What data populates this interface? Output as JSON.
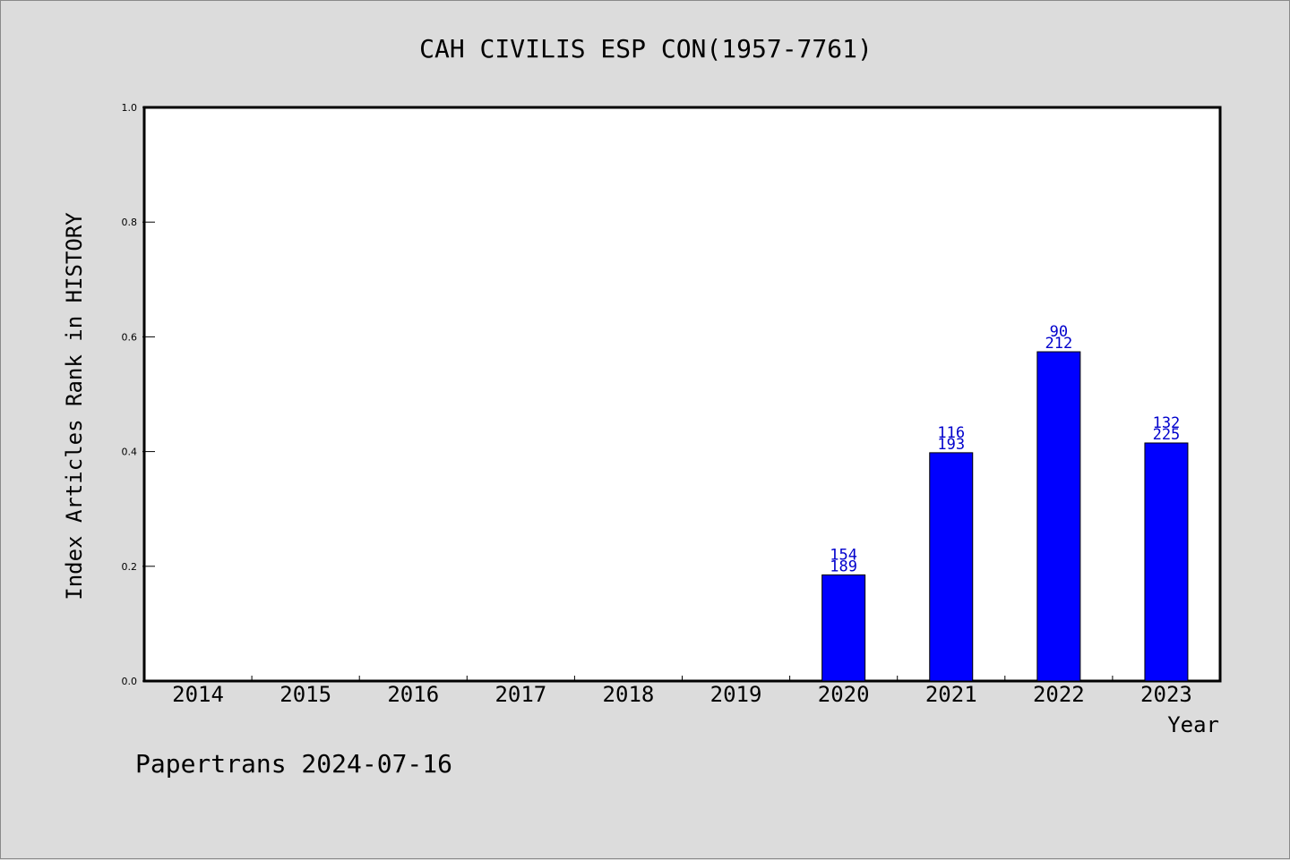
{
  "chart_data": {
    "type": "bar",
    "title": "CAH CIVILIS ESP CON(1957-7761)",
    "xlabel": "Year",
    "ylabel": "Index Articles Rank in HISTORY",
    "ylim": [
      0,
      1.0
    ],
    "yticks": [
      "0.0",
      "0.2",
      "0.4",
      "0.6",
      "0.8",
      "1.0"
    ],
    "categories": [
      "2014",
      "2015",
      "2016",
      "2017",
      "2018",
      "2019",
      "2020",
      "2021",
      "2022",
      "2023"
    ],
    "values": [
      null,
      null,
      null,
      null,
      null,
      null,
      0.185,
      0.398,
      0.574,
      0.415
    ],
    "bar_labels_top": [
      null,
      null,
      null,
      null,
      null,
      null,
      "154",
      "116",
      "90",
      "132"
    ],
    "bar_labels_bottom": [
      null,
      null,
      null,
      null,
      null,
      null,
      "189",
      "193",
      "212",
      "225"
    ],
    "bar_color": "#0000ff",
    "label_color": "#0000cc",
    "background_color": "#dcdcdc",
    "plot_background": "#ffffff",
    "grid": false
  },
  "footer": {
    "text": "Papertrans 2024-07-16"
  }
}
